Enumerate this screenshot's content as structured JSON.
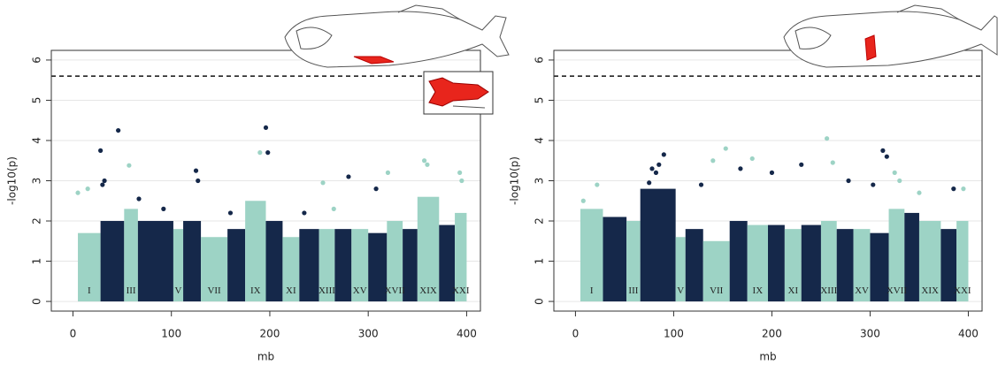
{
  "chart_data": [
    {
      "type": "scatter",
      "xlabel": "mb",
      "ylabel": "-log10(p)",
      "xlim": [
        -22,
        414
      ],
      "ylim": [
        -0.24,
        6.24
      ],
      "xticks": [
        0,
        100,
        200,
        300,
        400
      ],
      "yticks": [
        0,
        1,
        2,
        3,
        4,
        5,
        6
      ],
      "threshold": 5.6,
      "colors": [
        "#9dd3c5",
        "#15284a"
      ],
      "categories": [
        "I",
        null,
        "III",
        null,
        "V",
        null,
        "VII",
        null,
        "IX",
        null,
        "XI",
        null,
        "XIII",
        null,
        "XV",
        null,
        "XVII",
        null,
        "XIX",
        null,
        "XXI"
      ],
      "chrom_start": [
        5,
        28,
        52,
        66,
        102,
        112,
        130,
        157,
        175,
        196,
        213,
        230,
        250,
        266,
        283,
        300,
        319,
        335,
        350,
        372,
        388
      ],
      "chrom_end": [
        28,
        52,
        66,
        102,
        112,
        130,
        157,
        175,
        196,
        213,
        230,
        250,
        266,
        283,
        300,
        319,
        335,
        350,
        372,
        388,
        400
      ],
      "band_values": [
        1.7,
        2.0,
        2.3,
        2.0,
        1.8,
        2.0,
        1.6,
        1.8,
        2.5,
        2.0,
        1.6,
        1.8,
        1.8,
        1.8,
        1.8,
        1.7,
        2.0,
        1.8,
        2.6,
        1.9,
        2.2
      ],
      "x": [
        5,
        15,
        28,
        30,
        32,
        46,
        57,
        67,
        92,
        125,
        127,
        160,
        190,
        196,
        198,
        235,
        254,
        265,
        280,
        308,
        320,
        357,
        360,
        393,
        395
      ],
      "y": [
        2.7,
        2.8,
        3.75,
        2.9,
        3.0,
        4.25,
        3.38,
        2.55,
        2.3,
        3.25,
        3.0,
        2.2,
        3.7,
        4.32,
        3.7,
        2.2,
        2.95,
        2.3,
        3.1,
        2.8,
        3.2,
        3.5,
        3.4,
        3.2,
        3.0
      ]
    },
    {
      "type": "scatter",
      "xlabel": "mb",
      "ylabel": "-log10(p)",
      "xlim": [
        -22,
        414
      ],
      "ylim": [
        -0.24,
        6.24
      ],
      "xticks": [
        0,
        100,
        200,
        300,
        400
      ],
      "yticks": [
        0,
        1,
        2,
        3,
        4,
        5,
        6
      ],
      "threshold": 5.6,
      "colors": [
        "#9dd3c5",
        "#15284a"
      ],
      "categories": [
        "I",
        null,
        "III",
        null,
        "V",
        null,
        "VII",
        null,
        "IX",
        null,
        "XI",
        null,
        "XIII",
        null,
        "XV",
        null,
        "XVII",
        null,
        "XIX",
        null,
        "XXI"
      ],
      "chrom_start": [
        5,
        28,
        52,
        66,
        102,
        112,
        130,
        157,
        175,
        196,
        213,
        230,
        250,
        266,
        283,
        300,
        319,
        335,
        350,
        372,
        388
      ],
      "chrom_end": [
        28,
        52,
        66,
        102,
        112,
        130,
        157,
        175,
        196,
        213,
        230,
        250,
        266,
        283,
        300,
        319,
        335,
        350,
        372,
        388,
        400
      ],
      "band_values": [
        2.3,
        2.1,
        2.0,
        2.8,
        1.6,
        1.8,
        1.5,
        2.0,
        1.9,
        1.9,
        1.8,
        1.9,
        2.0,
        1.8,
        1.8,
        1.7,
        2.3,
        2.2,
        2.0,
        1.8,
        2.0
      ],
      "x": [
        8,
        22,
        75,
        78,
        82,
        85,
        90,
        128,
        140,
        153,
        168,
        180,
        200,
        230,
        256,
        262,
        278,
        303,
        313,
        317,
        325,
        330,
        350,
        385,
        395
      ],
      "y": [
        2.5,
        2.9,
        2.95,
        3.3,
        3.2,
        3.4,
        3.65,
        2.9,
        3.5,
        3.8,
        3.3,
        3.55,
        3.2,
        3.4,
        4.05,
        3.45,
        3.0,
        2.9,
        3.75,
        3.6,
        3.2,
        3.0,
        2.7,
        2.8,
        2.8
      ]
    }
  ]
}
